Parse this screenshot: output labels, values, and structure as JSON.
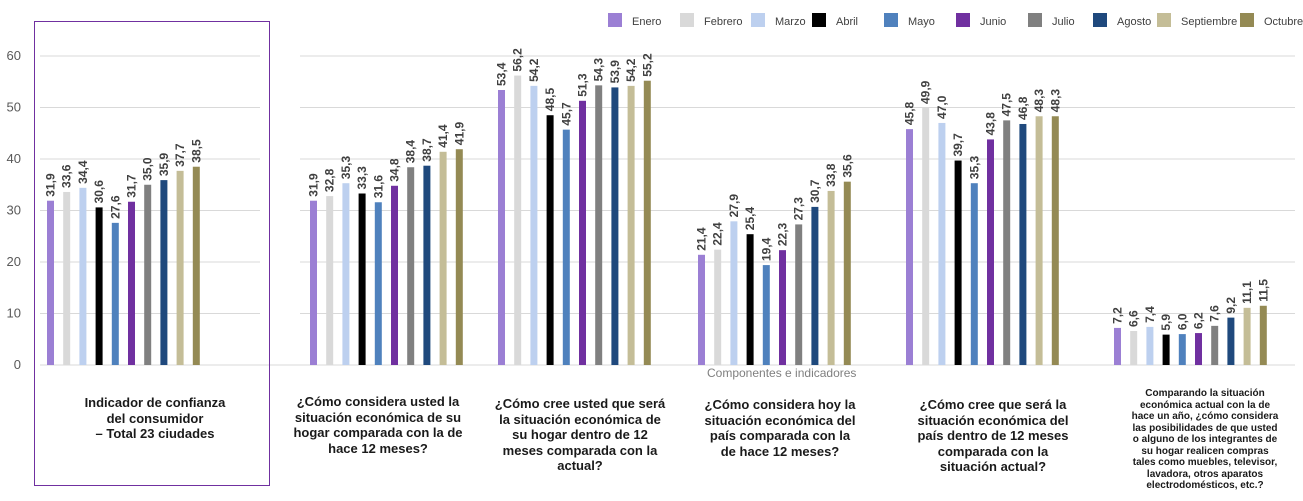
{
  "chart_data": {
    "type": "bar",
    "xlabel": "Componentes e indicadores",
    "ylabel": "",
    "ylim": [
      0,
      60
    ],
    "yticks": [
      0,
      10,
      20,
      30,
      40,
      50,
      60
    ],
    "grid": true,
    "legend_position": "top-right",
    "categories": [
      "Indicador de confianza\ndel consumidor\n– Total 23 ciudades",
      "¿Cómo considera usted la\nsituación económica de su\nhogar comparada con la de\nhace 12 meses?",
      "¿Cómo cree usted que será\nla situación económica de\nsu hogar dentro de 12\nmeses comparada con la\nactual?",
      "¿Cómo considera hoy la\nsituación económica del\npaís comparada con la\nde hace 12 meses?",
      "¿Cómo cree que será la\nsituación económica del\npaís dentro de 12 meses\ncomparada con la\nsituación actual?",
      "Comparando la situación\neconómica actual con la de\nhace un año, ¿cómo considera\nlas posibilidades de que usted\no alguno de los integrantes de\nsu hogar realicen compras\ntales como muebles, televisor,\nlavadora, otros aparatos\nelectrodomésticos, etc.?"
    ],
    "series": [
      {
        "name": "Enero",
        "color": "#9b7fd4",
        "values": [
          31.9,
          31.9,
          53.4,
          21.4,
          45.8,
          7.2
        ],
        "labels": [
          "31,9",
          "31,9",
          "53,4",
          "21,4",
          "45,8",
          "7,2"
        ]
      },
      {
        "name": "Febrero",
        "color": "#d9d9d9",
        "values": [
          33.6,
          32.8,
          56.2,
          22.4,
          49.9,
          6.6
        ],
        "labels": [
          "33,6",
          "32,8",
          "56,2",
          "22,4",
          "49,9",
          "6,6"
        ]
      },
      {
        "name": "Marzo",
        "color": "#bdd0ef",
        "values": [
          34.4,
          35.3,
          54.2,
          27.9,
          47.0,
          7.4
        ],
        "labels": [
          "34,4",
          "35,3",
          "54,2",
          "27,9",
          "47,0",
          "7,4"
        ]
      },
      {
        "name": "Abril",
        "color": "#000000",
        "values": [
          30.6,
          33.3,
          48.5,
          25.4,
          39.7,
          5.9
        ],
        "labels": [
          "30,6",
          "33,3",
          "48,5",
          "25,4",
          "39,7",
          "5,9"
        ]
      },
      {
        "name": "Mayo",
        "color": "#4f81bd",
        "values": [
          27.6,
          31.6,
          45.7,
          19.4,
          35.3,
          6.0
        ],
        "labels": [
          "27,6",
          "31,6",
          "45,7",
          "19,4",
          "35,3",
          "6,0"
        ]
      },
      {
        "name": "Junio",
        "color": "#7030a0",
        "values": [
          31.7,
          34.8,
          51.3,
          22.3,
          43.8,
          6.2
        ],
        "labels": [
          "31,7",
          "34,8",
          "51,3",
          "22,3",
          "43,8",
          "6,2"
        ]
      },
      {
        "name": "Julio",
        "color": "#808080",
        "values": [
          35.0,
          38.4,
          54.3,
          27.3,
          47.5,
          7.6
        ],
        "labels": [
          "35,0",
          "38,4",
          "54,3",
          "27,3",
          "47,5",
          "7,6"
        ]
      },
      {
        "name": "Agosto",
        "color": "#1f497d",
        "values": [
          35.9,
          38.7,
          53.9,
          30.7,
          46.8,
          9.2
        ],
        "labels": [
          "35,9",
          "38,7",
          "53,9",
          "30,7",
          "46,8",
          "9,2"
        ]
      },
      {
        "name": "Septiembre",
        "color": "#c4bd97",
        "values": [
          37.7,
          41.4,
          54.2,
          33.8,
          48.3,
          11.1
        ],
        "labels": [
          "37,7",
          "41,4",
          "54,2",
          "33,8",
          "48,3",
          "11,1"
        ]
      },
      {
        "name": "Octubre",
        "color": "#948a54",
        "values": [
          38.5,
          41.9,
          55.2,
          35.6,
          48.3,
          11.5
        ],
        "labels": [
          "38,5",
          "41,9",
          "55,2",
          "35,6",
          "48,3",
          "11,5"
        ]
      }
    ]
  }
}
